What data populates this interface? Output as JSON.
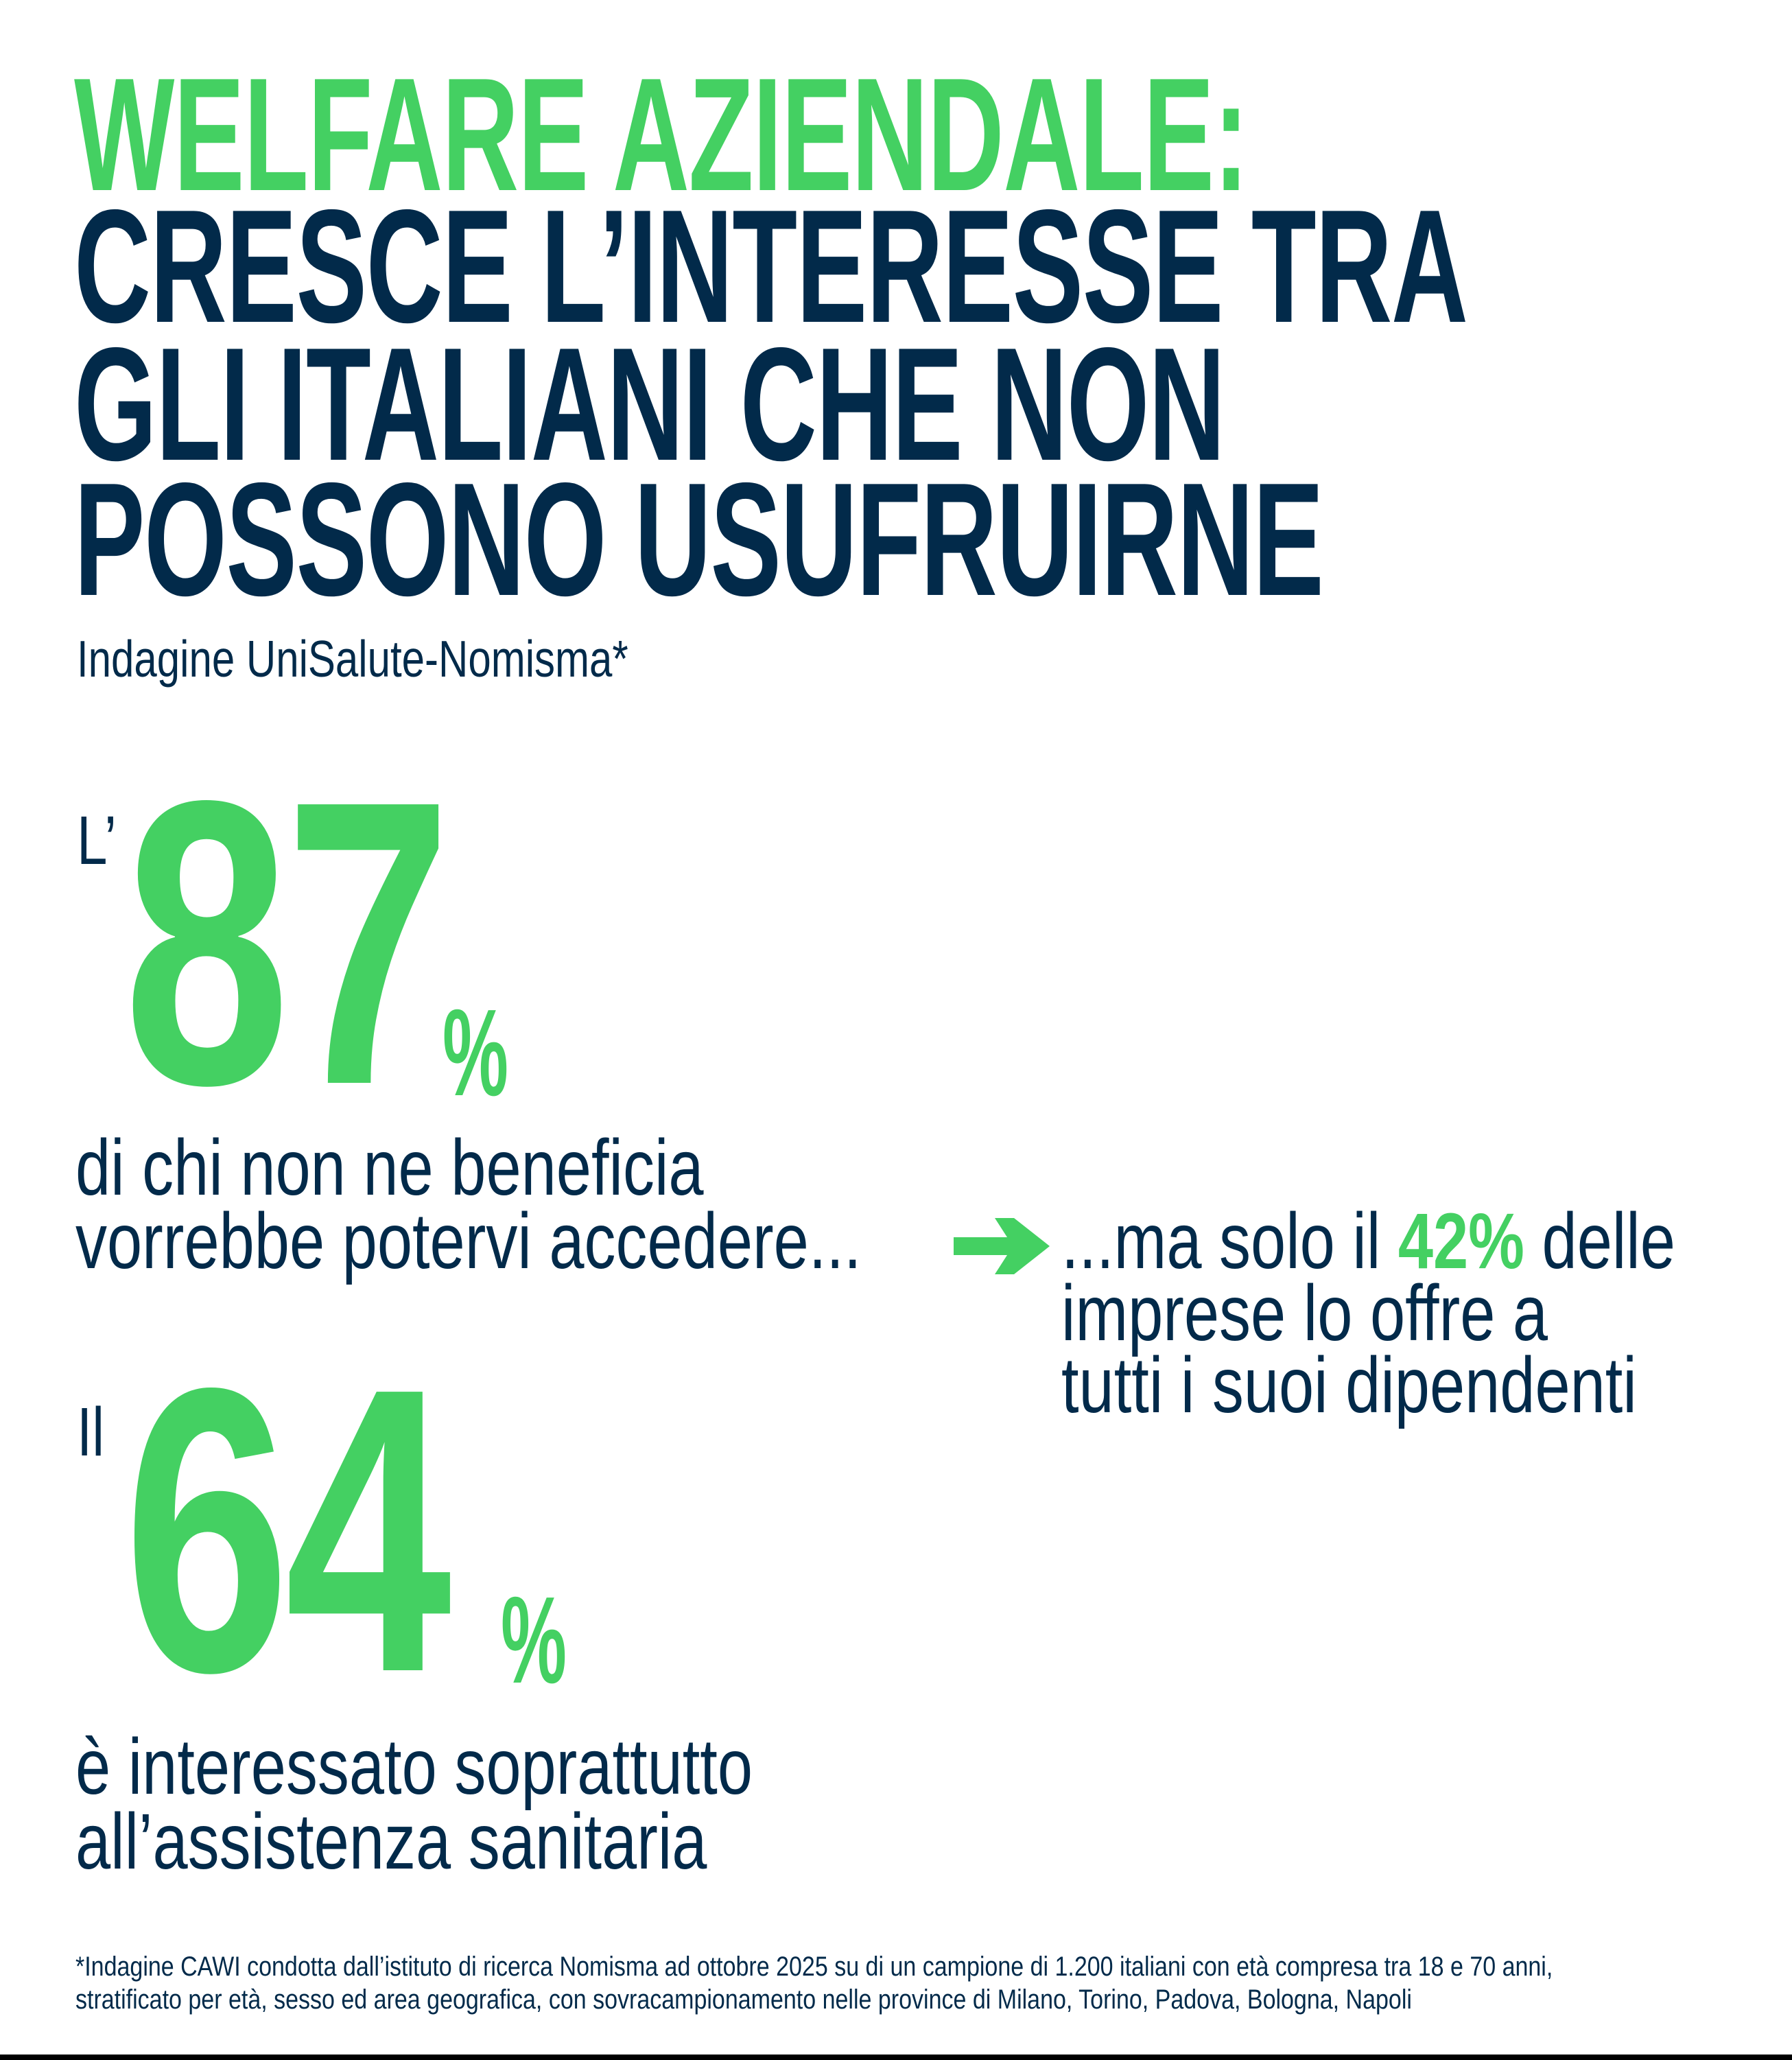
{
  "title": {
    "line1": "WELFARE AZIENDALE:",
    "line2": "CRESCE L’INTERESSE TRA",
    "line3": "GLI ITALIANI CHE NON",
    "line4": "POSSONO USUFRUIRNE"
  },
  "subtitle": "Indagine UniSalute-Nomisma*",
  "stat1": {
    "prefix": "L’",
    "value": "87",
    "unit": "%",
    "line1": "di chi non ne beneficia",
    "line2": "vorrebbe potervi accedere..."
  },
  "stat2": {
    "prefix_text": "...ma solo il ",
    "value": "42%",
    "suffix_text": " delle",
    "line2": "imprese lo offre a",
    "line3": "tutti i suoi dipendenti"
  },
  "stat3": {
    "prefix": "Il",
    "value": "64",
    "unit": "%",
    "line1": "è interessato soprattutto",
    "line2": "all’assistenza sanitaria"
  },
  "footnote": {
    "line1": "*Indagine CAWI condotta dall’istituto di ricerca Nomisma ad ottobre 2025 su di un campione di 1.200 italiani con età compresa tra 18 e 70 anni,",
    "line2": "stratificato per età, sesso ed area geografica, con sovracampionamento nelle province di Milano, Torino, Padova, Bologna, Napoli"
  },
  "icons": {
    "arrow": "arrow-right-icon"
  },
  "colors": {
    "accent": "#44d062",
    "text": "#022a4a"
  }
}
